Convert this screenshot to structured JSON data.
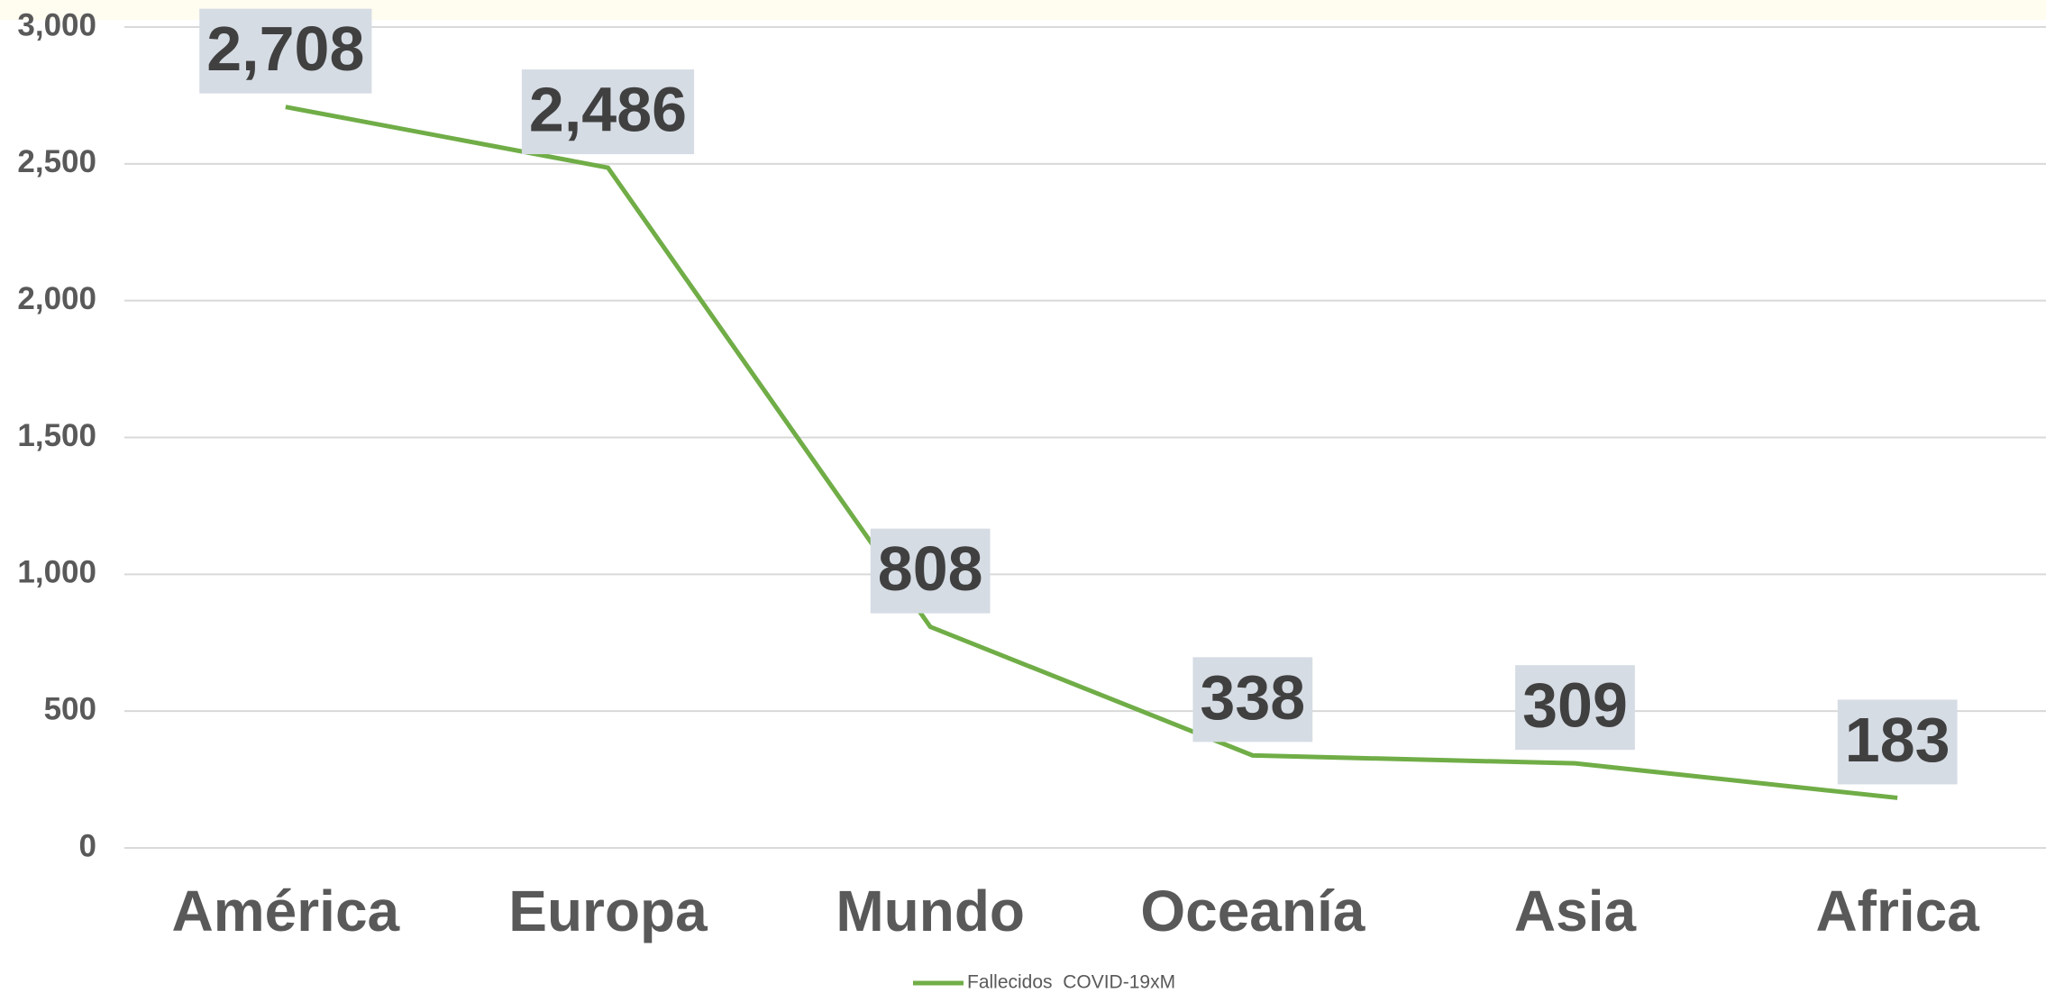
{
  "chart_data": {
    "type": "line",
    "categories": [
      "América",
      "Europa",
      "Mundo",
      "Oceanía",
      "Asia",
      "Africa"
    ],
    "series": [
      {
        "name": "Fallecidos  COVID-19xM",
        "color": "#70ad47",
        "values": [
          2708,
          2486,
          808,
          338,
          309,
          183
        ],
        "value_labels": [
          "2,708",
          "2,486",
          "808",
          "338",
          "309",
          "183"
        ]
      }
    ],
    "ylim": [
      0,
      3000
    ],
    "yticks": [
      0,
      500,
      {
        "value": 1000,
        "label": "1,000"
      },
      {
        "value": 1500,
        "label": "1,500"
      },
      {
        "value": 2000,
        "label": "2,000"
      },
      {
        "value": 2500,
        "label": "2,500"
      },
      {
        "value": 3000,
        "label": "3,000"
      }
    ],
    "grid": true,
    "legend": "bottom"
  }
}
